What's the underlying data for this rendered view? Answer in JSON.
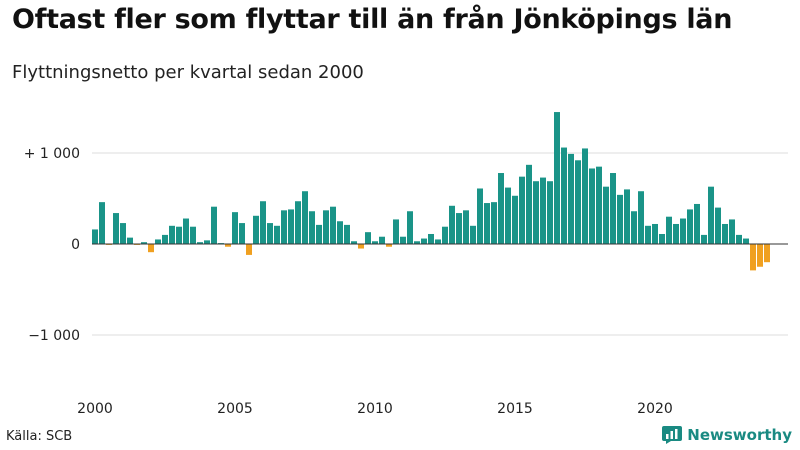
{
  "header": {
    "title": "Oftast fler som flyttar till än från Jönköpings län",
    "subtitle": "Flyttningsnetto per kvartal sedan 2000"
  },
  "footer": {
    "source": "Källa: SCB",
    "brand": "Newsworthy"
  },
  "colors": {
    "positive": "#1a9488",
    "negative": "#f0a020",
    "grid": "#dddddd",
    "zero_line": "#333333",
    "brand": "#1a8a82"
  },
  "chart_data": {
    "type": "bar",
    "title": "Oftast fler som flyttar till än från Jönköpings län",
    "subtitle": "Flyttningsnetto per kvartal sedan 2000",
    "x_start": "2000-Q1",
    "frequency": "quarterly",
    "x_tick_labels": [
      "2000",
      "2005",
      "2010",
      "2015",
      "2020"
    ],
    "y_ticks": [
      1000,
      0,
      -1000
    ],
    "y_tick_labels": [
      "+ 1 000",
      "0",
      "−1 000"
    ],
    "ylim": [
      -1500,
      1500
    ],
    "grid": true,
    "values": [
      160,
      460,
      -10,
      340,
      230,
      70,
      -10,
      20,
      -90,
      50,
      100,
      200,
      190,
      280,
      190,
      20,
      40,
      410,
      10,
      -30,
      350,
      230,
      -120,
      310,
      470,
      230,
      200,
      370,
      380,
      470,
      580,
      360,
      210,
      370,
      410,
      250,
      210,
      30,
      -50,
      130,
      30,
      80,
      -30,
      270,
      80,
      360,
      30,
      60,
      110,
      50,
      190,
      420,
      340,
      370,
      200,
      610,
      450,
      460,
      780,
      620,
      530,
      740,
      870,
      690,
      730,
      690,
      1450,
      1060,
      990,
      920,
      1050,
      830,
      850,
      630,
      780,
      540,
      600,
      360,
      580,
      200,
      220,
      110,
      300,
      220,
      280,
      380,
      440,
      100,
      630,
      400,
      220,
      270,
      100,
      60,
      -290,
      -250,
      -200
    ]
  }
}
